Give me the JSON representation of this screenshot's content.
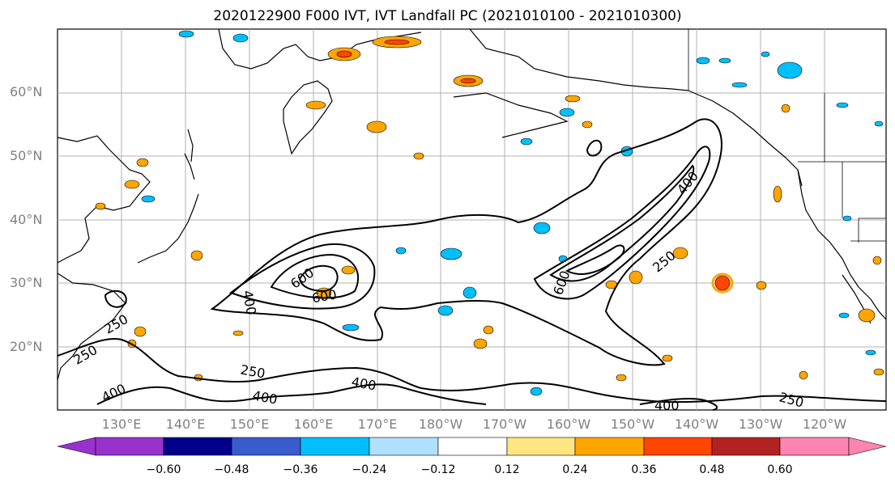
{
  "title": "2020122900 F000 IVT, IVT Landfall PC (2021010100 - 2021010300)",
  "lat_labels": [
    "60°N",
    "50°N",
    "40°N",
    "30°N",
    "20°N"
  ],
  "lon_labels": [
    "130°E",
    "140°E",
    "150°E",
    "160°E",
    "170°E",
    "180°W",
    "170°W",
    "160°W",
    "150°W",
    "140°W",
    "130°W",
    "120°W"
  ],
  "colorbar": {
    "ticks": [
      "−0.60",
      "−0.48",
      "−0.36",
      "−0.24",
      "−0.12",
      "0.12",
      "0.24",
      "0.36",
      "0.48",
      "0.60"
    ],
    "colors": [
      "#9932cc",
      "#00008b",
      "#3a5bcc",
      "#00bfff",
      "#b0e0ff",
      "#ffffff",
      "#ffe680",
      "#ffa500",
      "#ff4500",
      "#b22222",
      "#ff85b0"
    ]
  },
  "contour_labels": [
    "600",
    "600",
    "600",
    "400",
    "250",
    "250",
    "250",
    "400",
    "250",
    "400",
    "400",
    "400",
    "400",
    "250"
  ],
  "colors": {
    "contour": "#000000",
    "coast": "#000000",
    "grid": "#b0b0b0",
    "positive": "#ffa500",
    "positive_light": "#ffe680",
    "positive_strong": "#ff4500",
    "negative": "#00bfff",
    "negative_light": "#b0e0ff"
  }
}
